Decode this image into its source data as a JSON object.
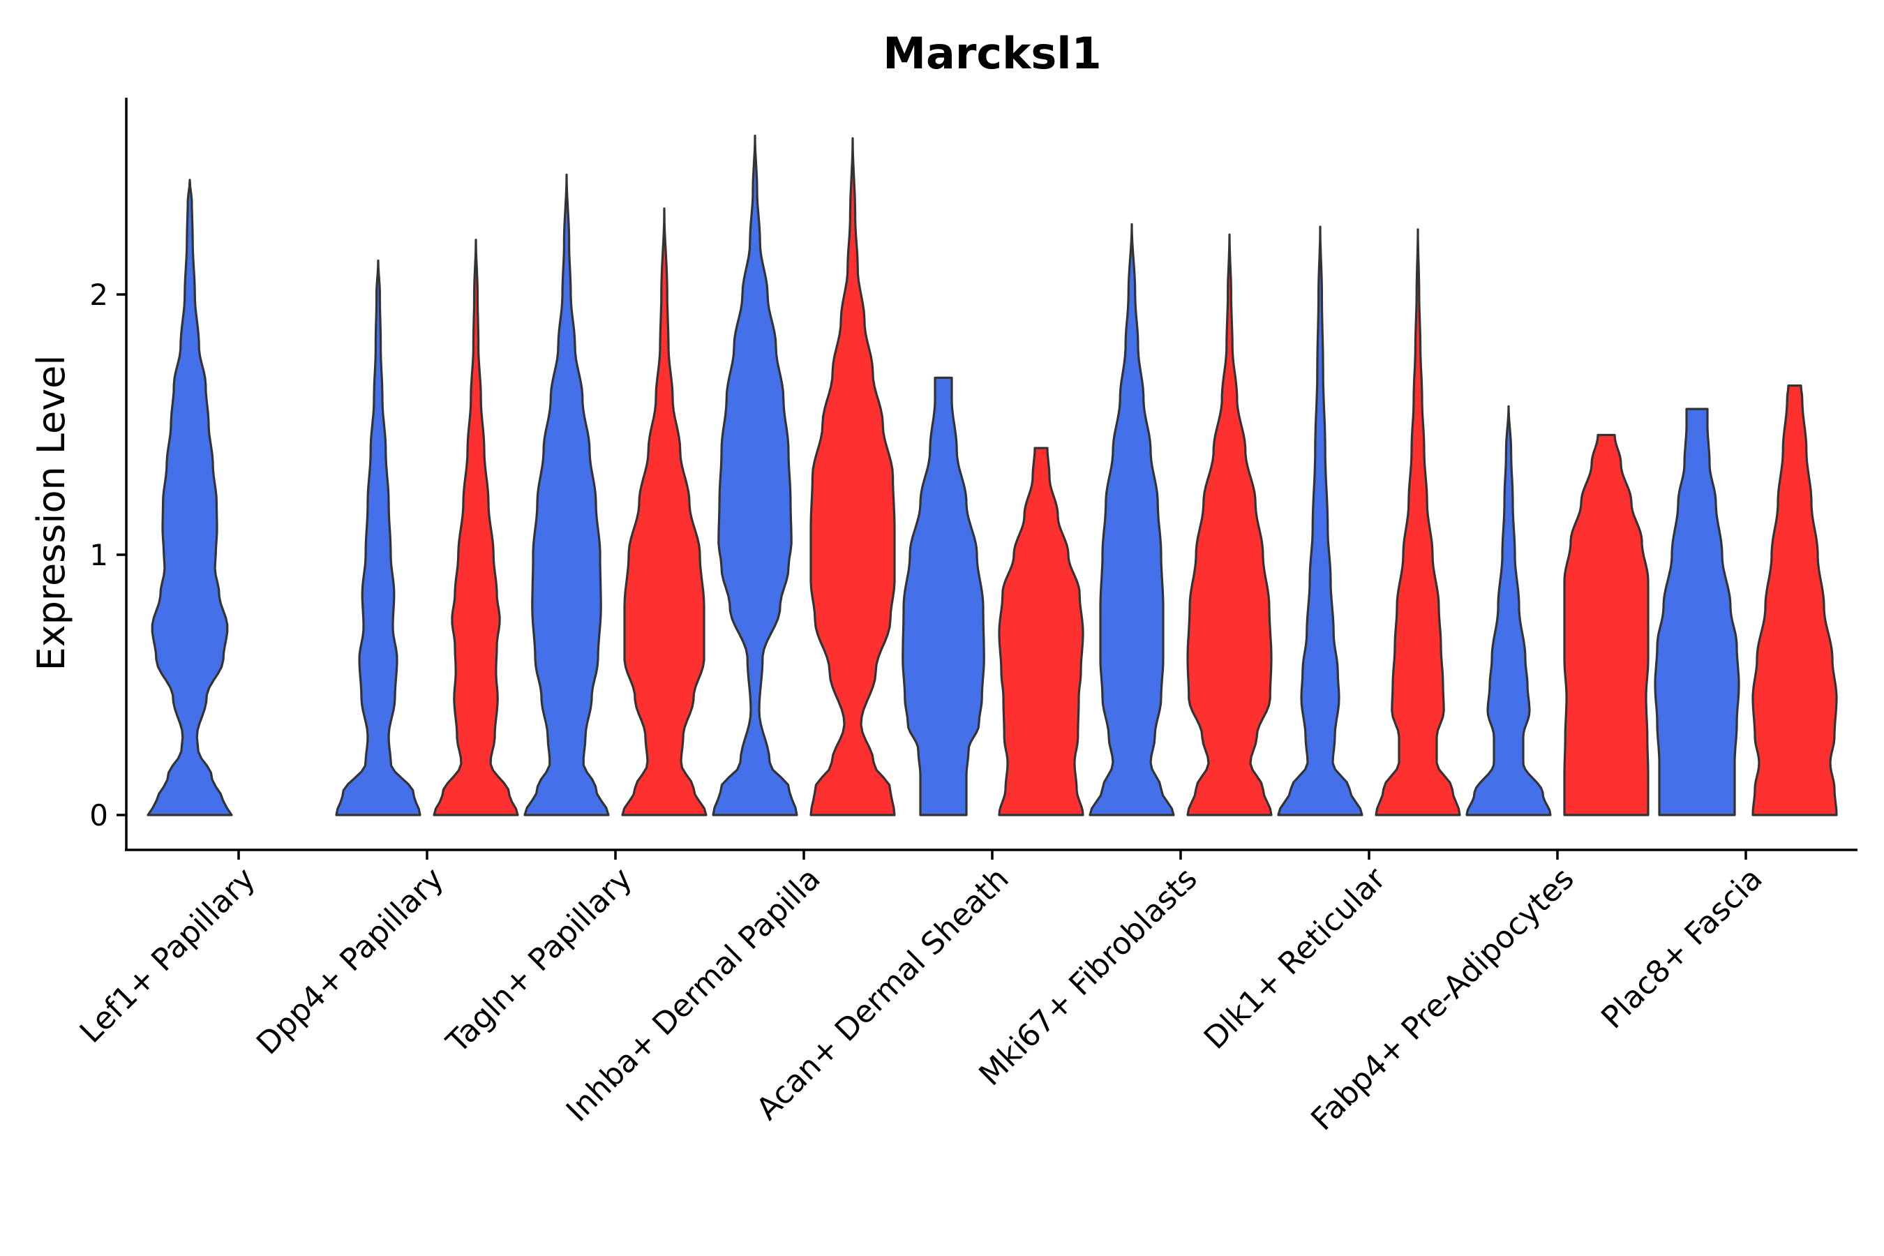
{
  "chart_data": {
    "type": "violin",
    "title": "Marcksl1",
    "ylabel": "Expression Level",
    "xlabel": "",
    "ylim": [
      -0.13,
      2.75
    ],
    "yticks": [
      0,
      1,
      2
    ],
    "grid": false,
    "legend": "none",
    "series_colors": [
      "#4470EA",
      "#FF3030"
    ],
    "categories": [
      "Lef1+ Papillary",
      "Dpp4+ Papillary",
      "Tagln+ Papillary",
      "Inhba+ Dermal Papilla",
      "Acan+ Dermal Sheath",
      "Mki67+ Fibroblasts",
      "Dlk1+ Reticular",
      "Fabp4+ Pre-Adipocytes",
      "Plac8+ Fascia"
    ],
    "violins": [
      {
        "category": "Lef1+ Papillary",
        "group": 1,
        "color": "#4470EA",
        "max": 2.44,
        "profile": [
          [
            0,
            1.0
          ],
          [
            0.05,
            0.8
          ],
          [
            0.15,
            0.52
          ],
          [
            0.25,
            0.2
          ],
          [
            0.3,
            0.17
          ],
          [
            0.45,
            0.4
          ],
          [
            0.6,
            0.8
          ],
          [
            0.72,
            0.9
          ],
          [
            0.85,
            0.7
          ],
          [
            0.95,
            0.6
          ],
          [
            1.0,
            0.62
          ],
          [
            1.1,
            0.65
          ],
          [
            1.2,
            0.64
          ],
          [
            1.35,
            0.55
          ],
          [
            1.5,
            0.45
          ],
          [
            1.65,
            0.38
          ],
          [
            1.8,
            0.22
          ],
          [
            2.0,
            0.12
          ],
          [
            2.2,
            0.07
          ],
          [
            2.35,
            0.05
          ],
          [
            2.44,
            0.0
          ]
        ]
      },
      {
        "category": "Dpp4+ Papillary",
        "group": 1,
        "color": "#4470EA",
        "max": 2.13,
        "profile": [
          [
            0,
            1.0
          ],
          [
            0.08,
            0.85
          ],
          [
            0.2,
            0.3
          ],
          [
            0.3,
            0.25
          ],
          [
            0.45,
            0.4
          ],
          [
            0.6,
            0.45
          ],
          [
            0.72,
            0.35
          ],
          [
            0.85,
            0.38
          ],
          [
            1.0,
            0.3
          ],
          [
            1.2,
            0.25
          ],
          [
            1.4,
            0.18
          ],
          [
            1.6,
            0.1
          ],
          [
            1.8,
            0.06
          ],
          [
            2.0,
            0.04
          ],
          [
            2.13,
            0.0
          ]
        ]
      },
      {
        "category": "Dpp4+ Papillary",
        "group": 2,
        "color": "#FF3030",
        "max": 2.21,
        "profile": [
          [
            0,
            1.0
          ],
          [
            0.08,
            0.8
          ],
          [
            0.2,
            0.35
          ],
          [
            0.3,
            0.45
          ],
          [
            0.45,
            0.52
          ],
          [
            0.55,
            0.48
          ],
          [
            0.65,
            0.5
          ],
          [
            0.75,
            0.57
          ],
          [
            0.85,
            0.5
          ],
          [
            1.0,
            0.42
          ],
          [
            1.2,
            0.3
          ],
          [
            1.4,
            0.2
          ],
          [
            1.6,
            0.12
          ],
          [
            1.8,
            0.06
          ],
          [
            2.0,
            0.04
          ],
          [
            2.21,
            0.0
          ]
        ]
      },
      {
        "category": "Tagln+ Papillary",
        "group": 1,
        "color": "#4470EA",
        "max": 2.46,
        "profile": [
          [
            0,
            1.0
          ],
          [
            0.1,
            0.7
          ],
          [
            0.2,
            0.4
          ],
          [
            0.3,
            0.45
          ],
          [
            0.45,
            0.6
          ],
          [
            0.6,
            0.75
          ],
          [
            0.8,
            0.82
          ],
          [
            1.0,
            0.8
          ],
          [
            1.2,
            0.7
          ],
          [
            1.4,
            0.55
          ],
          [
            1.6,
            0.38
          ],
          [
            1.8,
            0.2
          ],
          [
            2.0,
            0.1
          ],
          [
            2.2,
            0.06
          ],
          [
            2.46,
            0.0
          ]
        ]
      },
      {
        "category": "Tagln+ Papillary",
        "group": 2,
        "color": "#FF3030",
        "max": 2.33,
        "profile": [
          [
            0,
            1.0
          ],
          [
            0.1,
            0.7
          ],
          [
            0.2,
            0.4
          ],
          [
            0.3,
            0.45
          ],
          [
            0.45,
            0.7
          ],
          [
            0.6,
            0.95
          ],
          [
            0.8,
            0.95
          ],
          [
            1.0,
            0.85
          ],
          [
            1.2,
            0.6
          ],
          [
            1.4,
            0.38
          ],
          [
            1.6,
            0.2
          ],
          [
            1.8,
            0.1
          ],
          [
            2.0,
            0.07
          ],
          [
            2.33,
            0.0
          ]
        ]
      },
      {
        "category": "Inhba+ Dermal Papilla",
        "group": 1,
        "color": "#4470EA",
        "max": 2.61,
        "profile": [
          [
            0,
            1.0
          ],
          [
            0.1,
            0.82
          ],
          [
            0.2,
            0.35
          ],
          [
            0.4,
            0.1
          ],
          [
            0.6,
            0.18
          ],
          [
            0.8,
            0.6
          ],
          [
            0.95,
            0.8
          ],
          [
            1.05,
            0.87
          ],
          [
            1.2,
            0.85
          ],
          [
            1.4,
            0.8
          ],
          [
            1.6,
            0.68
          ],
          [
            1.8,
            0.5
          ],
          [
            2.0,
            0.3
          ],
          [
            2.2,
            0.12
          ],
          [
            2.4,
            0.05
          ],
          [
            2.61,
            0.0
          ]
        ]
      },
      {
        "category": "Inhba+ Dermal Papilla",
        "group": 2,
        "color": "#FF3030",
        "max": 2.6,
        "profile": [
          [
            0,
            1.0
          ],
          [
            0.1,
            0.9
          ],
          [
            0.2,
            0.5
          ],
          [
            0.35,
            0.2
          ],
          [
            0.55,
            0.55
          ],
          [
            0.75,
            0.9
          ],
          [
            0.9,
            1.0
          ],
          [
            1.1,
            1.0
          ],
          [
            1.3,
            0.96
          ],
          [
            1.5,
            0.72
          ],
          [
            1.7,
            0.48
          ],
          [
            1.9,
            0.28
          ],
          [
            2.1,
            0.12
          ],
          [
            2.3,
            0.06
          ],
          [
            2.6,
            0.0
          ]
        ]
      },
      {
        "category": "Acan+ Dermal Sheath",
        "group": 1,
        "color": "#4470EA",
        "max": 1.68,
        "profile": [
          [
            0,
            0.55
          ],
          [
            0.15,
            0.55
          ],
          [
            0.25,
            0.6
          ],
          [
            0.35,
            0.85
          ],
          [
            0.45,
            0.92
          ],
          [
            0.6,
            0.97
          ],
          [
            0.8,
            0.95
          ],
          [
            1.0,
            0.8
          ],
          [
            1.2,
            0.55
          ],
          [
            1.4,
            0.32
          ],
          [
            1.6,
            0.2
          ],
          [
            1.68,
            0.2
          ]
        ]
      },
      {
        "category": "Acan+ Dermal Sheath",
        "group": 2,
        "color": "#FF3030",
        "max": 1.41,
        "profile": [
          [
            0,
            1.0
          ],
          [
            0.1,
            0.85
          ],
          [
            0.2,
            0.8
          ],
          [
            0.3,
            0.88
          ],
          [
            0.45,
            0.9
          ],
          [
            0.55,
            0.95
          ],
          [
            0.7,
            1.0
          ],
          [
            0.85,
            0.92
          ],
          [
            1.0,
            0.65
          ],
          [
            1.15,
            0.4
          ],
          [
            1.3,
            0.2
          ],
          [
            1.41,
            0.15
          ]
        ]
      },
      {
        "category": "Mki67+ Fibroblasts",
        "group": 1,
        "color": "#4470EA",
        "max": 2.27,
        "profile": [
          [
            0,
            1.0
          ],
          [
            0.1,
            0.7
          ],
          [
            0.2,
            0.45
          ],
          [
            0.3,
            0.55
          ],
          [
            0.45,
            0.7
          ],
          [
            0.6,
            0.75
          ],
          [
            0.8,
            0.75
          ],
          [
            1.0,
            0.7
          ],
          [
            1.2,
            0.62
          ],
          [
            1.4,
            0.45
          ],
          [
            1.6,
            0.28
          ],
          [
            1.8,
            0.15
          ],
          [
            2.0,
            0.08
          ],
          [
            2.27,
            0.0
          ]
        ]
      },
      {
        "category": "Mki67+ Fibroblasts",
        "group": 2,
        "color": "#FF3030",
        "max": 2.23,
        "profile": [
          [
            0,
            1.0
          ],
          [
            0.1,
            0.8
          ],
          [
            0.2,
            0.5
          ],
          [
            0.3,
            0.65
          ],
          [
            0.45,
            0.97
          ],
          [
            0.6,
            1.0
          ],
          [
            0.8,
            0.95
          ],
          [
            1.0,
            0.8
          ],
          [
            1.2,
            0.62
          ],
          [
            1.4,
            0.38
          ],
          [
            1.6,
            0.18
          ],
          [
            1.8,
            0.07
          ],
          [
            2.0,
            0.04
          ],
          [
            2.23,
            0.0
          ]
        ]
      },
      {
        "category": "Dlk1+ Reticular",
        "group": 1,
        "color": "#4470EA",
        "max": 2.26,
        "profile": [
          [
            0,
            1.0
          ],
          [
            0.1,
            0.7
          ],
          [
            0.2,
            0.3
          ],
          [
            0.3,
            0.35
          ],
          [
            0.45,
            0.45
          ],
          [
            0.55,
            0.42
          ],
          [
            0.7,
            0.32
          ],
          [
            0.9,
            0.25
          ],
          [
            1.1,
            0.18
          ],
          [
            1.4,
            0.12
          ],
          [
            1.7,
            0.07
          ],
          [
            2.0,
            0.04
          ],
          [
            2.26,
            0.0
          ]
        ]
      },
      {
        "category": "Dlk1+ Reticular",
        "group": 2,
        "color": "#FF3030",
        "max": 2.25,
        "profile": [
          [
            0,
            1.0
          ],
          [
            0.1,
            0.82
          ],
          [
            0.2,
            0.45
          ],
          [
            0.3,
            0.45
          ],
          [
            0.4,
            0.62
          ],
          [
            0.5,
            0.6
          ],
          [
            0.65,
            0.55
          ],
          [
            0.8,
            0.5
          ],
          [
            1.0,
            0.35
          ],
          [
            1.2,
            0.22
          ],
          [
            1.4,
            0.15
          ],
          [
            1.6,
            0.1
          ],
          [
            1.8,
            0.06
          ],
          [
            2.0,
            0.03
          ],
          [
            2.25,
            0.0
          ]
        ]
      },
      {
        "category": "Fabp4+ Pre-Adipocytes",
        "group": 1,
        "color": "#4470EA",
        "max": 1.57,
        "profile": [
          [
            0,
            1.0
          ],
          [
            0.08,
            0.82
          ],
          [
            0.2,
            0.35
          ],
          [
            0.3,
            0.35
          ],
          [
            0.4,
            0.5
          ],
          [
            0.5,
            0.45
          ],
          [
            0.6,
            0.4
          ],
          [
            0.8,
            0.25
          ],
          [
            1.0,
            0.15
          ],
          [
            1.2,
            0.1
          ],
          [
            1.4,
            0.06
          ],
          [
            1.57,
            0.0
          ]
        ]
      },
      {
        "category": "Fabp4+ Pre-Adipocytes",
        "group": 2,
        "color": "#FF3030",
        "max": 1.46,
        "profile": [
          [
            0,
            1.0
          ],
          [
            0.15,
            1.0
          ],
          [
            0.3,
            0.98
          ],
          [
            0.45,
            0.95
          ],
          [
            0.6,
            1.0
          ],
          [
            0.75,
            1.0
          ],
          [
            0.9,
            1.0
          ],
          [
            1.05,
            0.85
          ],
          [
            1.2,
            0.6
          ],
          [
            1.35,
            0.35
          ],
          [
            1.46,
            0.2
          ]
        ]
      },
      {
        "category": "Plac8+ Fascia",
        "group": 1,
        "color": "#4470EA",
        "max": 1.56,
        "profile": [
          [
            0,
            0.9
          ],
          [
            0.1,
            0.9
          ],
          [
            0.2,
            0.9
          ],
          [
            0.35,
            0.95
          ],
          [
            0.5,
            1.0
          ],
          [
            0.65,
            0.95
          ],
          [
            0.8,
            0.8
          ],
          [
            1.0,
            0.6
          ],
          [
            1.2,
            0.45
          ],
          [
            1.35,
            0.3
          ],
          [
            1.5,
            0.25
          ],
          [
            1.56,
            0.25
          ]
        ]
      },
      {
        "category": "Plac8+ Fascia",
        "group": 2,
        "color": "#FF3030",
        "max": 1.65,
        "profile": [
          [
            0,
            1.0
          ],
          [
            0.1,
            0.95
          ],
          [
            0.2,
            0.85
          ],
          [
            0.3,
            0.95
          ],
          [
            0.45,
            1.0
          ],
          [
            0.6,
            0.9
          ],
          [
            0.8,
            0.7
          ],
          [
            1.0,
            0.55
          ],
          [
            1.2,
            0.4
          ],
          [
            1.4,
            0.28
          ],
          [
            1.6,
            0.18
          ],
          [
            1.65,
            0.15
          ]
        ]
      }
    ]
  }
}
